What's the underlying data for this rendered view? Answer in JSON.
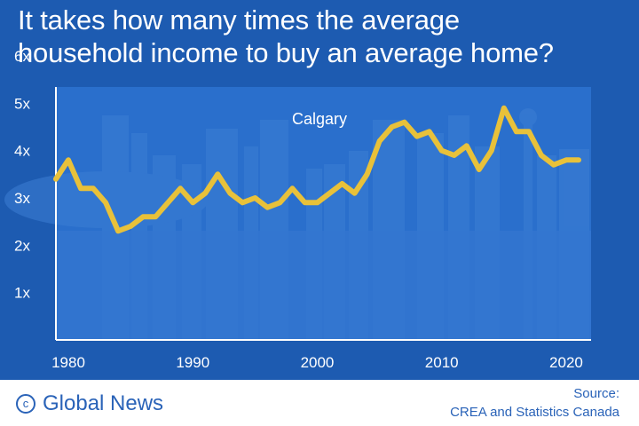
{
  "headline": {
    "line1": "It takes how many times the average",
    "line2": "household income to buy an average home?"
  },
  "footer": {
    "brand": "Global News",
    "source_line1": "Source:",
    "source_line2": "CREA and Statistics Canada"
  },
  "icons": {
    "copyright": "copyright-icon"
  },
  "colors": {
    "panel_background": "#1d5bb1",
    "chart_background": "#2a6fcc",
    "line": "#e8c13a",
    "text": "#ffffff",
    "brand": "#2a63b8"
  },
  "chart_data": {
    "type": "line",
    "title": "",
    "xlabel": "",
    "ylabel": "",
    "annotation": "Calgary",
    "xlim": [
      1979,
      2022
    ],
    "ylim": [
      0,
      6
    ],
    "x_ticks": [
      1980,
      1990,
      2000,
      2010,
      2020
    ],
    "y_ticks": [
      {
        "value": 1,
        "label": "1x"
      },
      {
        "value": 2,
        "label": "2x"
      },
      {
        "value": 3,
        "label": "3x"
      },
      {
        "value": 4,
        "label": "4x"
      },
      {
        "value": 5,
        "label": "5x"
      },
      {
        "value": 6,
        "label": "6x"
      }
    ],
    "grid": false,
    "series": [
      {
        "x": [
          1979,
          1980,
          1981,
          1982,
          1983,
          1984,
          1985,
          1986,
          1987,
          1988,
          1989,
          1990,
          1991,
          1992,
          1993,
          1994,
          1995,
          1996,
          1997,
          1998,
          1999,
          2000,
          2001,
          2002,
          2003,
          2004,
          2005,
          2006,
          2007,
          2008,
          2009,
          2010,
          2011,
          2012,
          2013,
          2014,
          2015,
          2016,
          2017,
          2018,
          2019,
          2020,
          2021
        ],
        "y": [
          3.4,
          3.8,
          3.2,
          3.2,
          2.9,
          2.3,
          2.4,
          2.6,
          2.6,
          2.9,
          3.2,
          2.9,
          3.1,
          3.5,
          3.1,
          2.9,
          3.0,
          2.8,
          2.9,
          3.2,
          2.9,
          2.9,
          3.1,
          3.3,
          3.1,
          3.5,
          4.2,
          4.5,
          4.6,
          4.3,
          4.4,
          4.0,
          3.9,
          4.1,
          3.6,
          4.0,
          4.9,
          4.4,
          4.4,
          3.9,
          3.7,
          3.8,
          3.8
        ]
      }
    ]
  }
}
